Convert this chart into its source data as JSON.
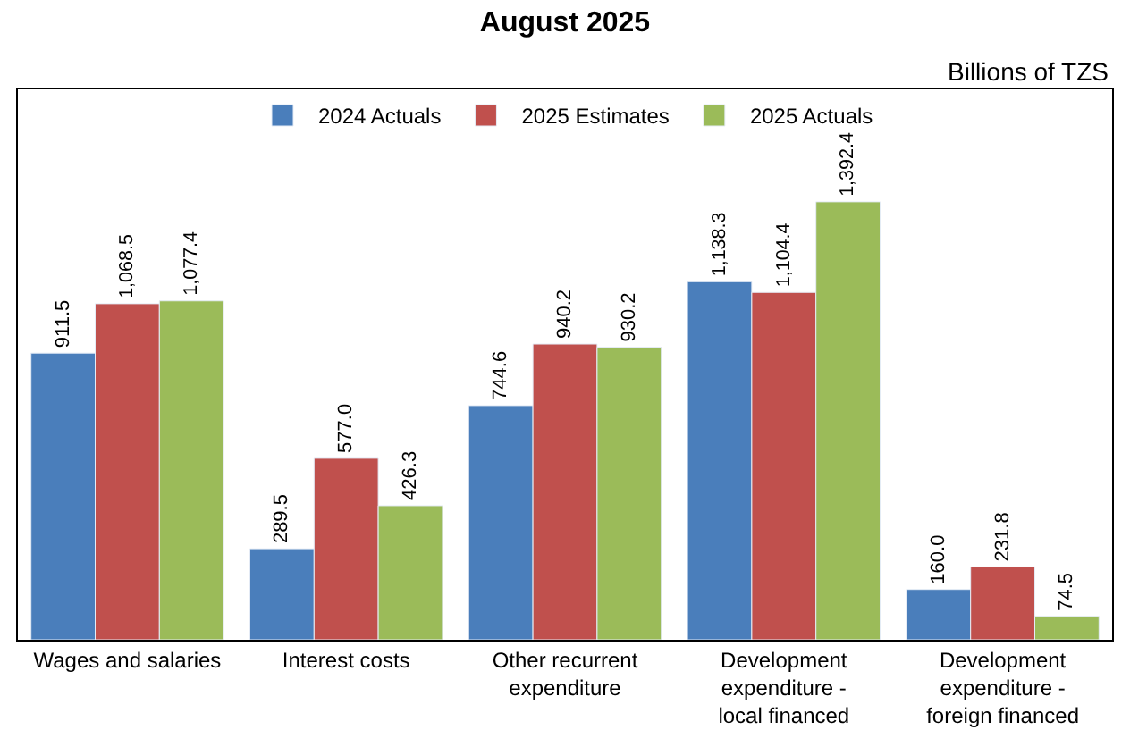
{
  "chart_data": {
    "type": "bar",
    "title": "August 2025",
    "annotations": [
      "Billions of TZS"
    ],
    "categories": [
      "Wages and salaries",
      "Interest costs",
      "Other recurrent expenditure",
      "Development expenditure - local financed",
      "Development expenditure - foreign financed"
    ],
    "series": [
      {
        "name": "2024 Actuals",
        "color": "#4a7ebb",
        "values": [
          911.5,
          289.5,
          744.6,
          1138.3,
          160.0
        ],
        "value_labels": [
          "911.5",
          "289.5",
          "744.6",
          "1,138.3",
          "160.0"
        ]
      },
      {
        "name": "2025 Estimates",
        "color": "#c0504d",
        "values": [
          1068.5,
          577.0,
          940.2,
          1104.4,
          231.8
        ],
        "value_labels": [
          "1,068.5",
          "577.0",
          "940.2",
          "1,104.4",
          "231.8"
        ]
      },
      {
        "name": "2025 Actuals",
        "color": "#9bbb59",
        "values": [
          1077.4,
          426.3,
          930.2,
          1392.4,
          74.5
        ],
        "value_labels": [
          "1,077.4",
          "426.3",
          "930.2",
          "1,392.4",
          "74.5"
        ]
      }
    ],
    "ylim": [
      0,
      1750
    ],
    "legend": "top",
    "tick_labels": "x"
  }
}
